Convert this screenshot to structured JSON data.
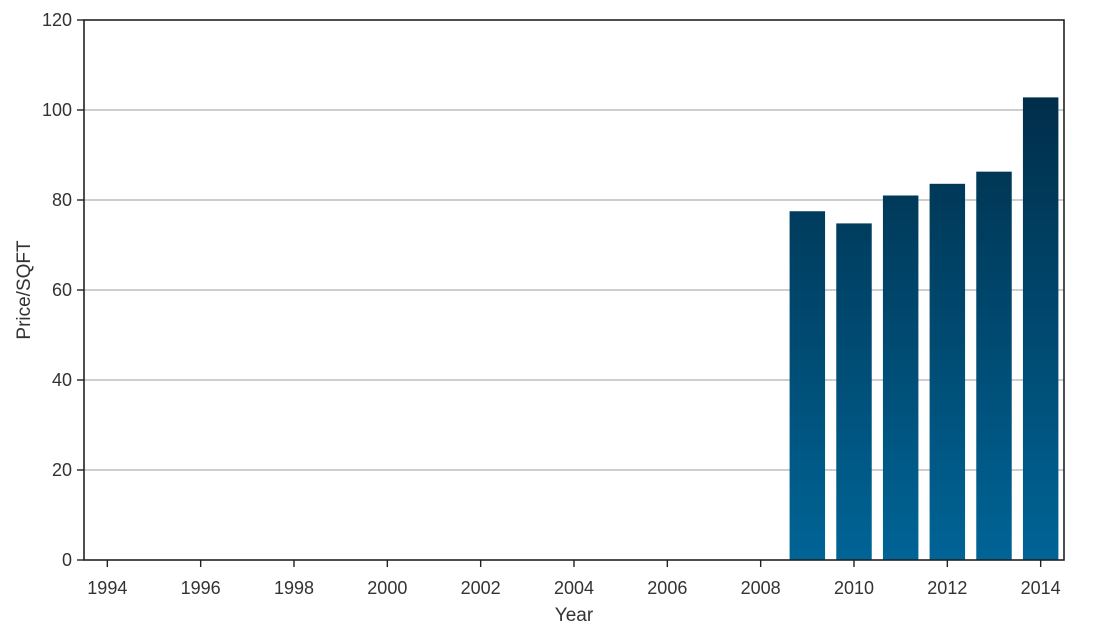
{
  "chart_data": {
    "type": "bar",
    "xlabel": "Year",
    "ylabel": "Price/SQFT",
    "categories": [
      "1994",
      "1995",
      "1996",
      "1997",
      "1998",
      "1999",
      "2000",
      "2001",
      "2002",
      "2003",
      "2004",
      "2005",
      "2006",
      "2007",
      "2008",
      "2009",
      "2010",
      "2011",
      "2012",
      "2013",
      "2014"
    ],
    "values": [
      0,
      0,
      0,
      0,
      0,
      0,
      0,
      0,
      0,
      0,
      0,
      0,
      0,
      0,
      0,
      77.5,
      74.8,
      81.0,
      83.6,
      86.3,
      102.8
    ],
    "x_ticks": [
      "1994",
      "1996",
      "1998",
      "2000",
      "2002",
      "2004",
      "2006",
      "2008",
      "2010",
      "2012",
      "2014"
    ],
    "y_ticks": [
      "0",
      "20",
      "40",
      "60",
      "80",
      "100",
      "120"
    ],
    "ylim": [
      0,
      120
    ],
    "xlim": [
      1993.5,
      2014.5
    ],
    "grid": "y",
    "colors": {
      "bar_top": "#00253d",
      "bar_bottom": "#006496",
      "grid": "#b0b0b0",
      "axis": "#222222",
      "text": "#333333"
    }
  }
}
